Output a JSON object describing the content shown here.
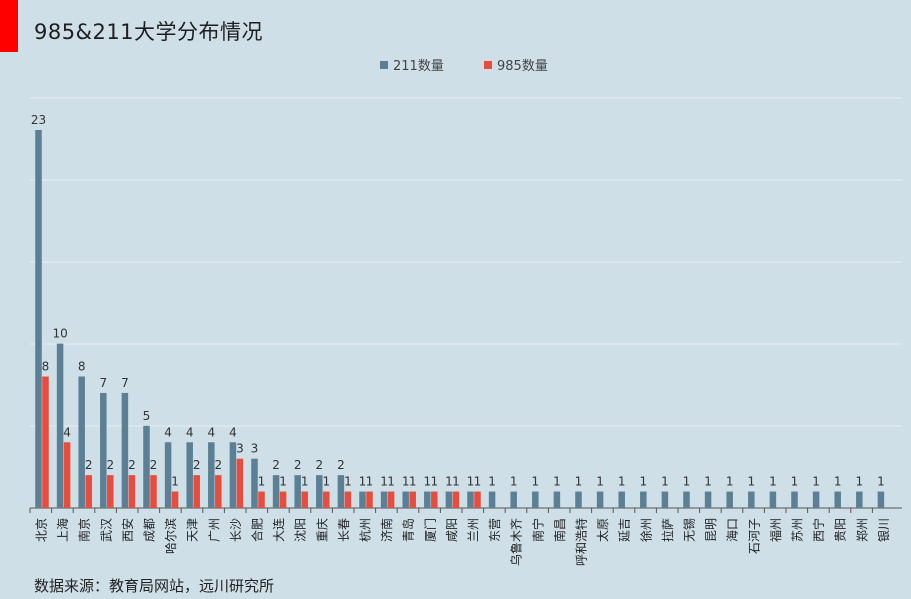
{
  "page": {
    "title": "985&211大学分布情况",
    "source": "数据来源：教育局网站，远川研究所",
    "accent_color": "#ff0000"
  },
  "chart_data": {
    "type": "bar",
    "title": "985&211大学分布情况",
    "xlabel": "",
    "ylabel": "",
    "ylim": [
      0,
      23
    ],
    "grid": true,
    "legend_position": "top-center",
    "categories": [
      "北京",
      "上海",
      "南京",
      "武汉",
      "西安",
      "成都",
      "哈尔滨",
      "天津",
      "广州",
      "长沙",
      "合肥",
      "大连",
      "沈阳",
      "重庆",
      "长春",
      "杭州",
      "济南",
      "青岛",
      "厦门",
      "咸阳",
      "兰州",
      "东营",
      "乌鲁木齐",
      "南宁",
      "南昌",
      "呼和浩特",
      "太原",
      "延吉",
      "徐州",
      "拉萨",
      "无锡",
      "昆明",
      "海口",
      "石河子",
      "福州",
      "苏州",
      "西宁",
      "贵阳",
      "郑州",
      "银川"
    ],
    "series": [
      {
        "name": "211数量",
        "color": "#5b7f95",
        "values": [
          23,
          10,
          8,
          7,
          7,
          5,
          4,
          4,
          4,
          4,
          3,
          2,
          2,
          2,
          2,
          1,
          1,
          1,
          1,
          1,
          1,
          1,
          1,
          1,
          1,
          1,
          1,
          1,
          1,
          1,
          1,
          1,
          1,
          1,
          1,
          1,
          1,
          1,
          1,
          1
        ]
      },
      {
        "name": "985数量",
        "color": "#e74c3c",
        "values": [
          8,
          4,
          2,
          2,
          2,
          2,
          1,
          2,
          2,
          3,
          1,
          1,
          1,
          1,
          1,
          1,
          1,
          1,
          1,
          1,
          1,
          null,
          null,
          null,
          null,
          null,
          null,
          null,
          null,
          null,
          null,
          null,
          null,
          null,
          null,
          null,
          null,
          null,
          null,
          null
        ]
      }
    ]
  }
}
